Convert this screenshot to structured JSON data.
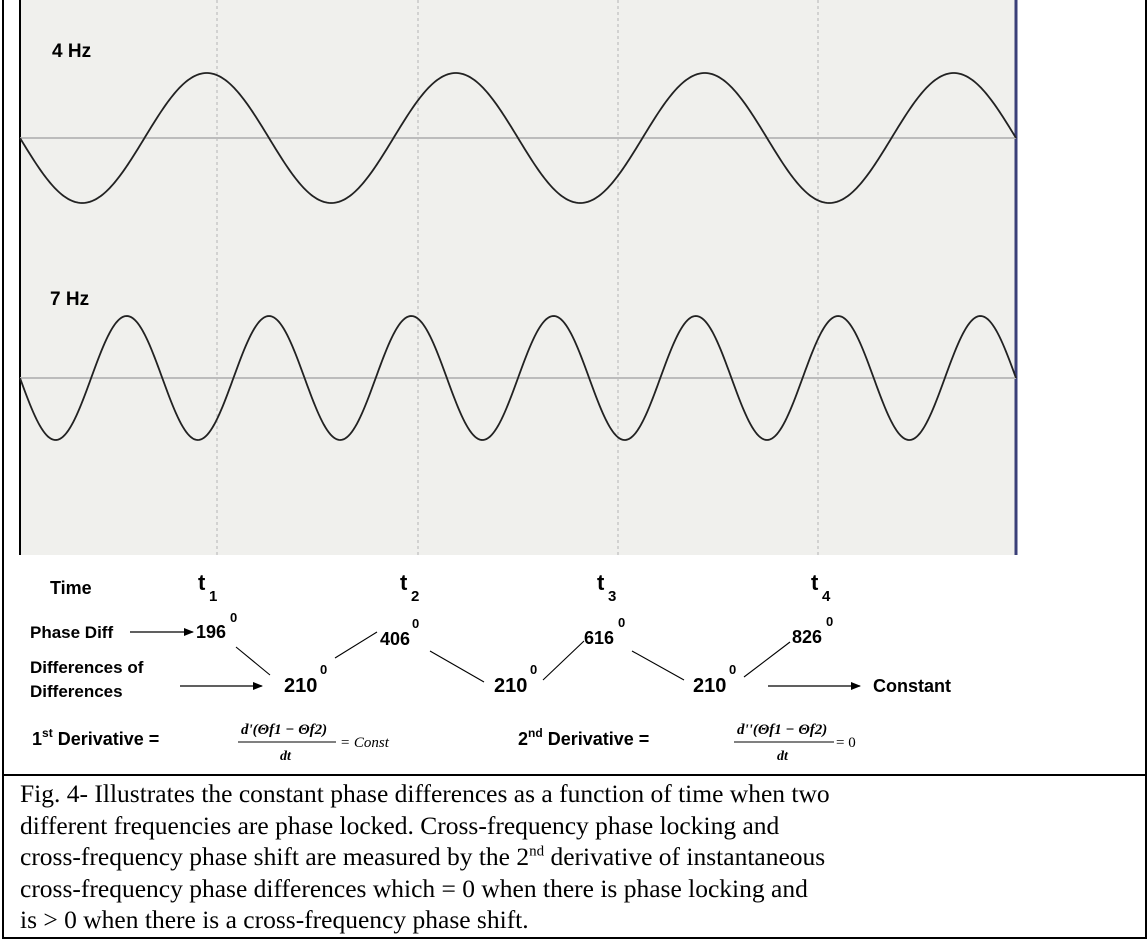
{
  "waves": [
    {
      "label": "4 Hz",
      "frequency_hz": 4
    },
    {
      "label": "7 Hz",
      "frequency_hz": 7
    }
  ],
  "time_row": {
    "label": "Time",
    "markers": [
      {
        "base": "t",
        "sub": "1"
      },
      {
        "base": "t",
        "sub": "2"
      },
      {
        "base": "t",
        "sub": "3"
      },
      {
        "base": "t",
        "sub": "4"
      }
    ]
  },
  "phase_diff": {
    "label": "Phase Diff",
    "values": [
      "196",
      "406",
      "616",
      "826"
    ],
    "unit_sup": "0"
  },
  "differences": {
    "label_line1": "Differences of",
    "label_line2": "Differences",
    "values": [
      "210",
      "210",
      "210"
    ],
    "unit_sup": "0",
    "result": "Constant"
  },
  "derivatives": {
    "first": {
      "label": "1",
      "label_sup": "st",
      "label_rest": " Derivative = ",
      "numerator": "d'(Θf1 − Θf2)",
      "denominator": "dt",
      "rhs": "= Const"
    },
    "second": {
      "label": "2",
      "label_sup": "nd",
      "label_rest": " Derivative = ",
      "numerator": "d''(Θf1 − Θf2)",
      "denominator": "dt",
      "rhs": "= 0"
    }
  },
  "caption": {
    "line1": "Fig. 4- Illustrates the constant phase differences as a function of time when two",
    "line2": "different frequencies are phase locked.   Cross-frequency phase locking and",
    "line3_a": "cross-frequency phase shift are measured by the 2",
    "line3_sup": "nd",
    "line3_b": "  derivative of instantaneous",
    "line4": "cross-frequency phase differences which = 0 when there is phase locking and",
    "line5": " is > 0 when there is a cross-frequency phase shift."
  },
  "colors": {
    "plot_background": "#f0f0ed",
    "wave": "#222222",
    "baseline": "#bcbcbc",
    "gridline": "#c8c8c8",
    "right_axis": "#3a3f78"
  }
}
